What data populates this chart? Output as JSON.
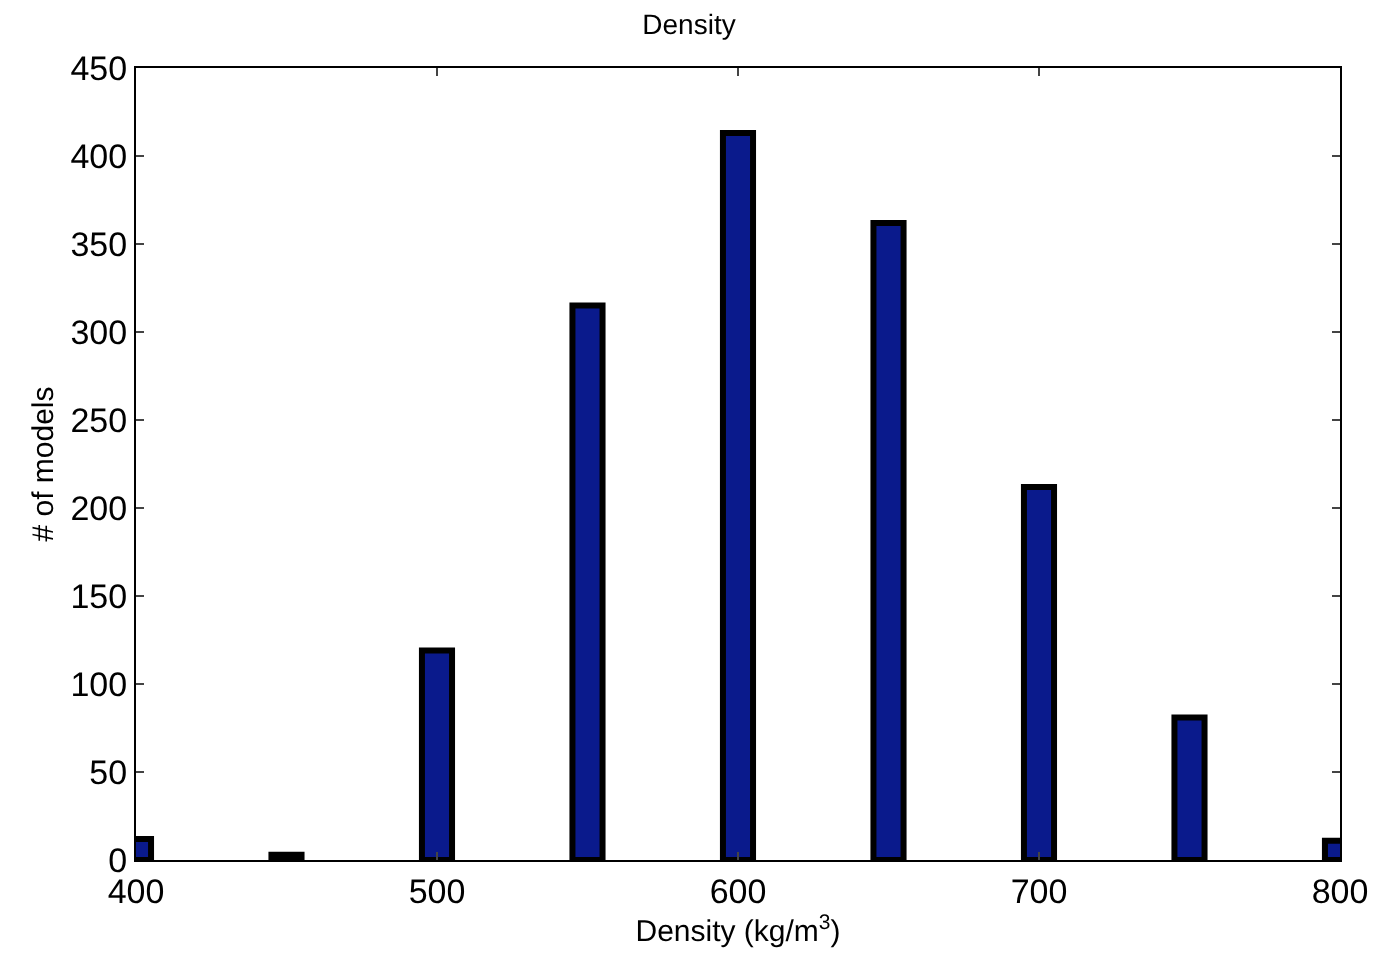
{
  "chart_data": {
    "type": "bar",
    "title": "Density",
    "xlabel": "Density (kg/m$^{3}$)",
    "ylabel": "# of models",
    "x": [
      400,
      450,
      500,
      550,
      600,
      650,
      700,
      750,
      800
    ],
    "values": [
      12,
      3,
      119,
      315,
      413,
      362,
      212,
      81,
      11
    ],
    "color": "#0a1a8c",
    "xlim": [
      400,
      800
    ],
    "xticks": [
      400,
      500,
      600,
      700,
      800
    ],
    "ylim": [
      0,
      450
    ],
    "yticks": [
      0,
      50,
      100,
      150,
      200,
      250,
      300,
      350,
      400,
      450
    ],
    "grid": false,
    "legend": false
  }
}
